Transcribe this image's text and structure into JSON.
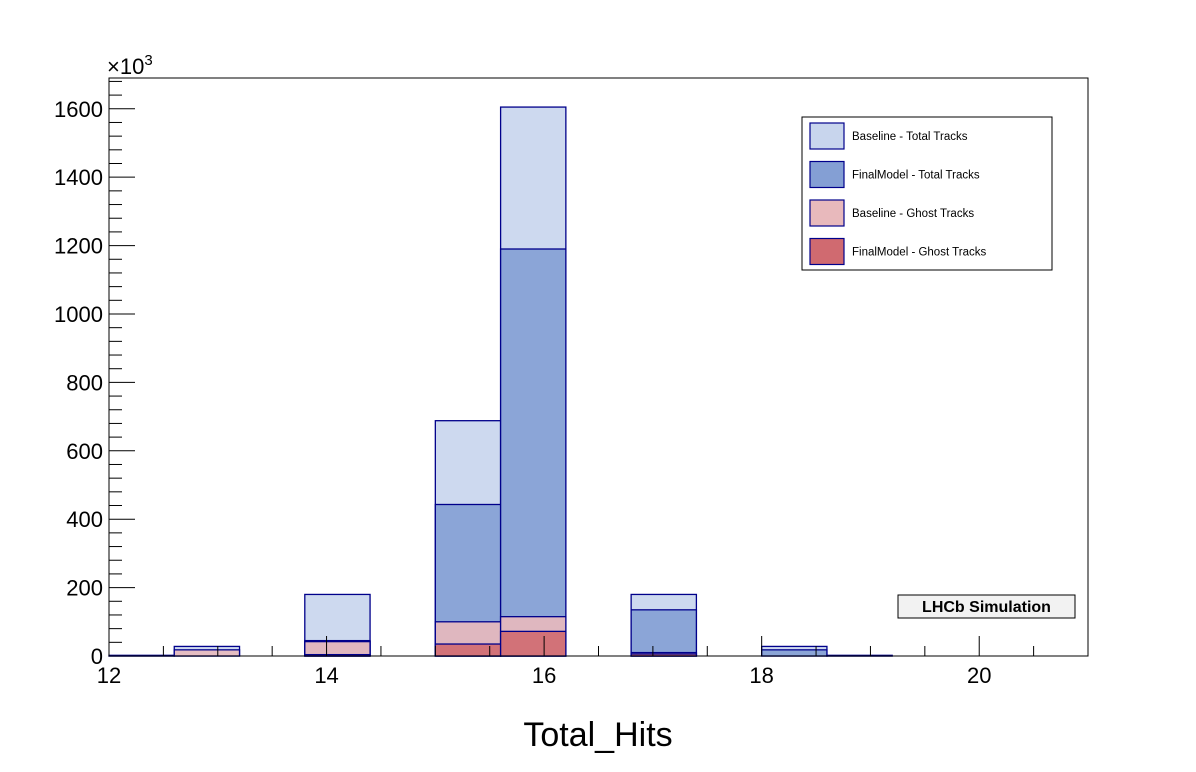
{
  "chart_data": {
    "type": "bar",
    "xlabel": "Total_Hits",
    "ylabel": "",
    "y_multiplier_label": "×10",
    "y_multiplier_exp": "3",
    "xlim": [
      12,
      21
    ],
    "ylim": [
      0,
      1690
    ],
    "bin_width": 0.6,
    "x_ticks": [
      "12",
      "14",
      "16",
      "18",
      "20"
    ],
    "y_ticks": [
      "0",
      "200",
      "400",
      "600",
      "800",
      "1000",
      "1200",
      "1400",
      "1600"
    ],
    "series": [
      {
        "name": "Baseline - Total Tracks",
        "color": "#c8d5ed",
        "bins": [
          {
            "x0": 12.6,
            "value": 28
          },
          {
            "x0": 13.8,
            "value": 180
          },
          {
            "x0": 15.0,
            "value": 688
          },
          {
            "x0": 15.6,
            "value": 1605
          },
          {
            "x0": 16.8,
            "value": 180
          },
          {
            "x0": 18.0,
            "value": 28
          }
        ]
      },
      {
        "name": "FinalModel - Total Tracks",
        "color": "#849fd4",
        "bins": [
          {
            "x0": 12.0,
            "value": 2
          },
          {
            "x0": 13.8,
            "value": 45
          },
          {
            "x0": 15.0,
            "value": 443
          },
          {
            "x0": 15.6,
            "value": 1190
          },
          {
            "x0": 16.8,
            "value": 135
          },
          {
            "x0": 18.0,
            "value": 18
          },
          {
            "x0": 18.6,
            "value": 2
          }
        ]
      },
      {
        "name": "Baseline - Ghost Tracks",
        "color": "#e8b9bc",
        "bins": [
          {
            "x0": 12.6,
            "value": 18
          },
          {
            "x0": 13.8,
            "value": 42
          },
          {
            "x0": 15.0,
            "value": 100
          },
          {
            "x0": 15.6,
            "value": 115
          },
          {
            "x0": 16.8,
            "value": 10
          }
        ]
      },
      {
        "name": "FinalModel - Ghost Tracks",
        "color": "#d06a70",
        "bins": [
          {
            "x0": 13.8,
            "value": 4
          },
          {
            "x0": 15.0,
            "value": 35
          },
          {
            "x0": 15.6,
            "value": 72
          },
          {
            "x0": 16.8,
            "value": 6
          }
        ]
      }
    ],
    "legend_position": "top-right",
    "annotation": "LHCb Simulation",
    "grid": false
  }
}
